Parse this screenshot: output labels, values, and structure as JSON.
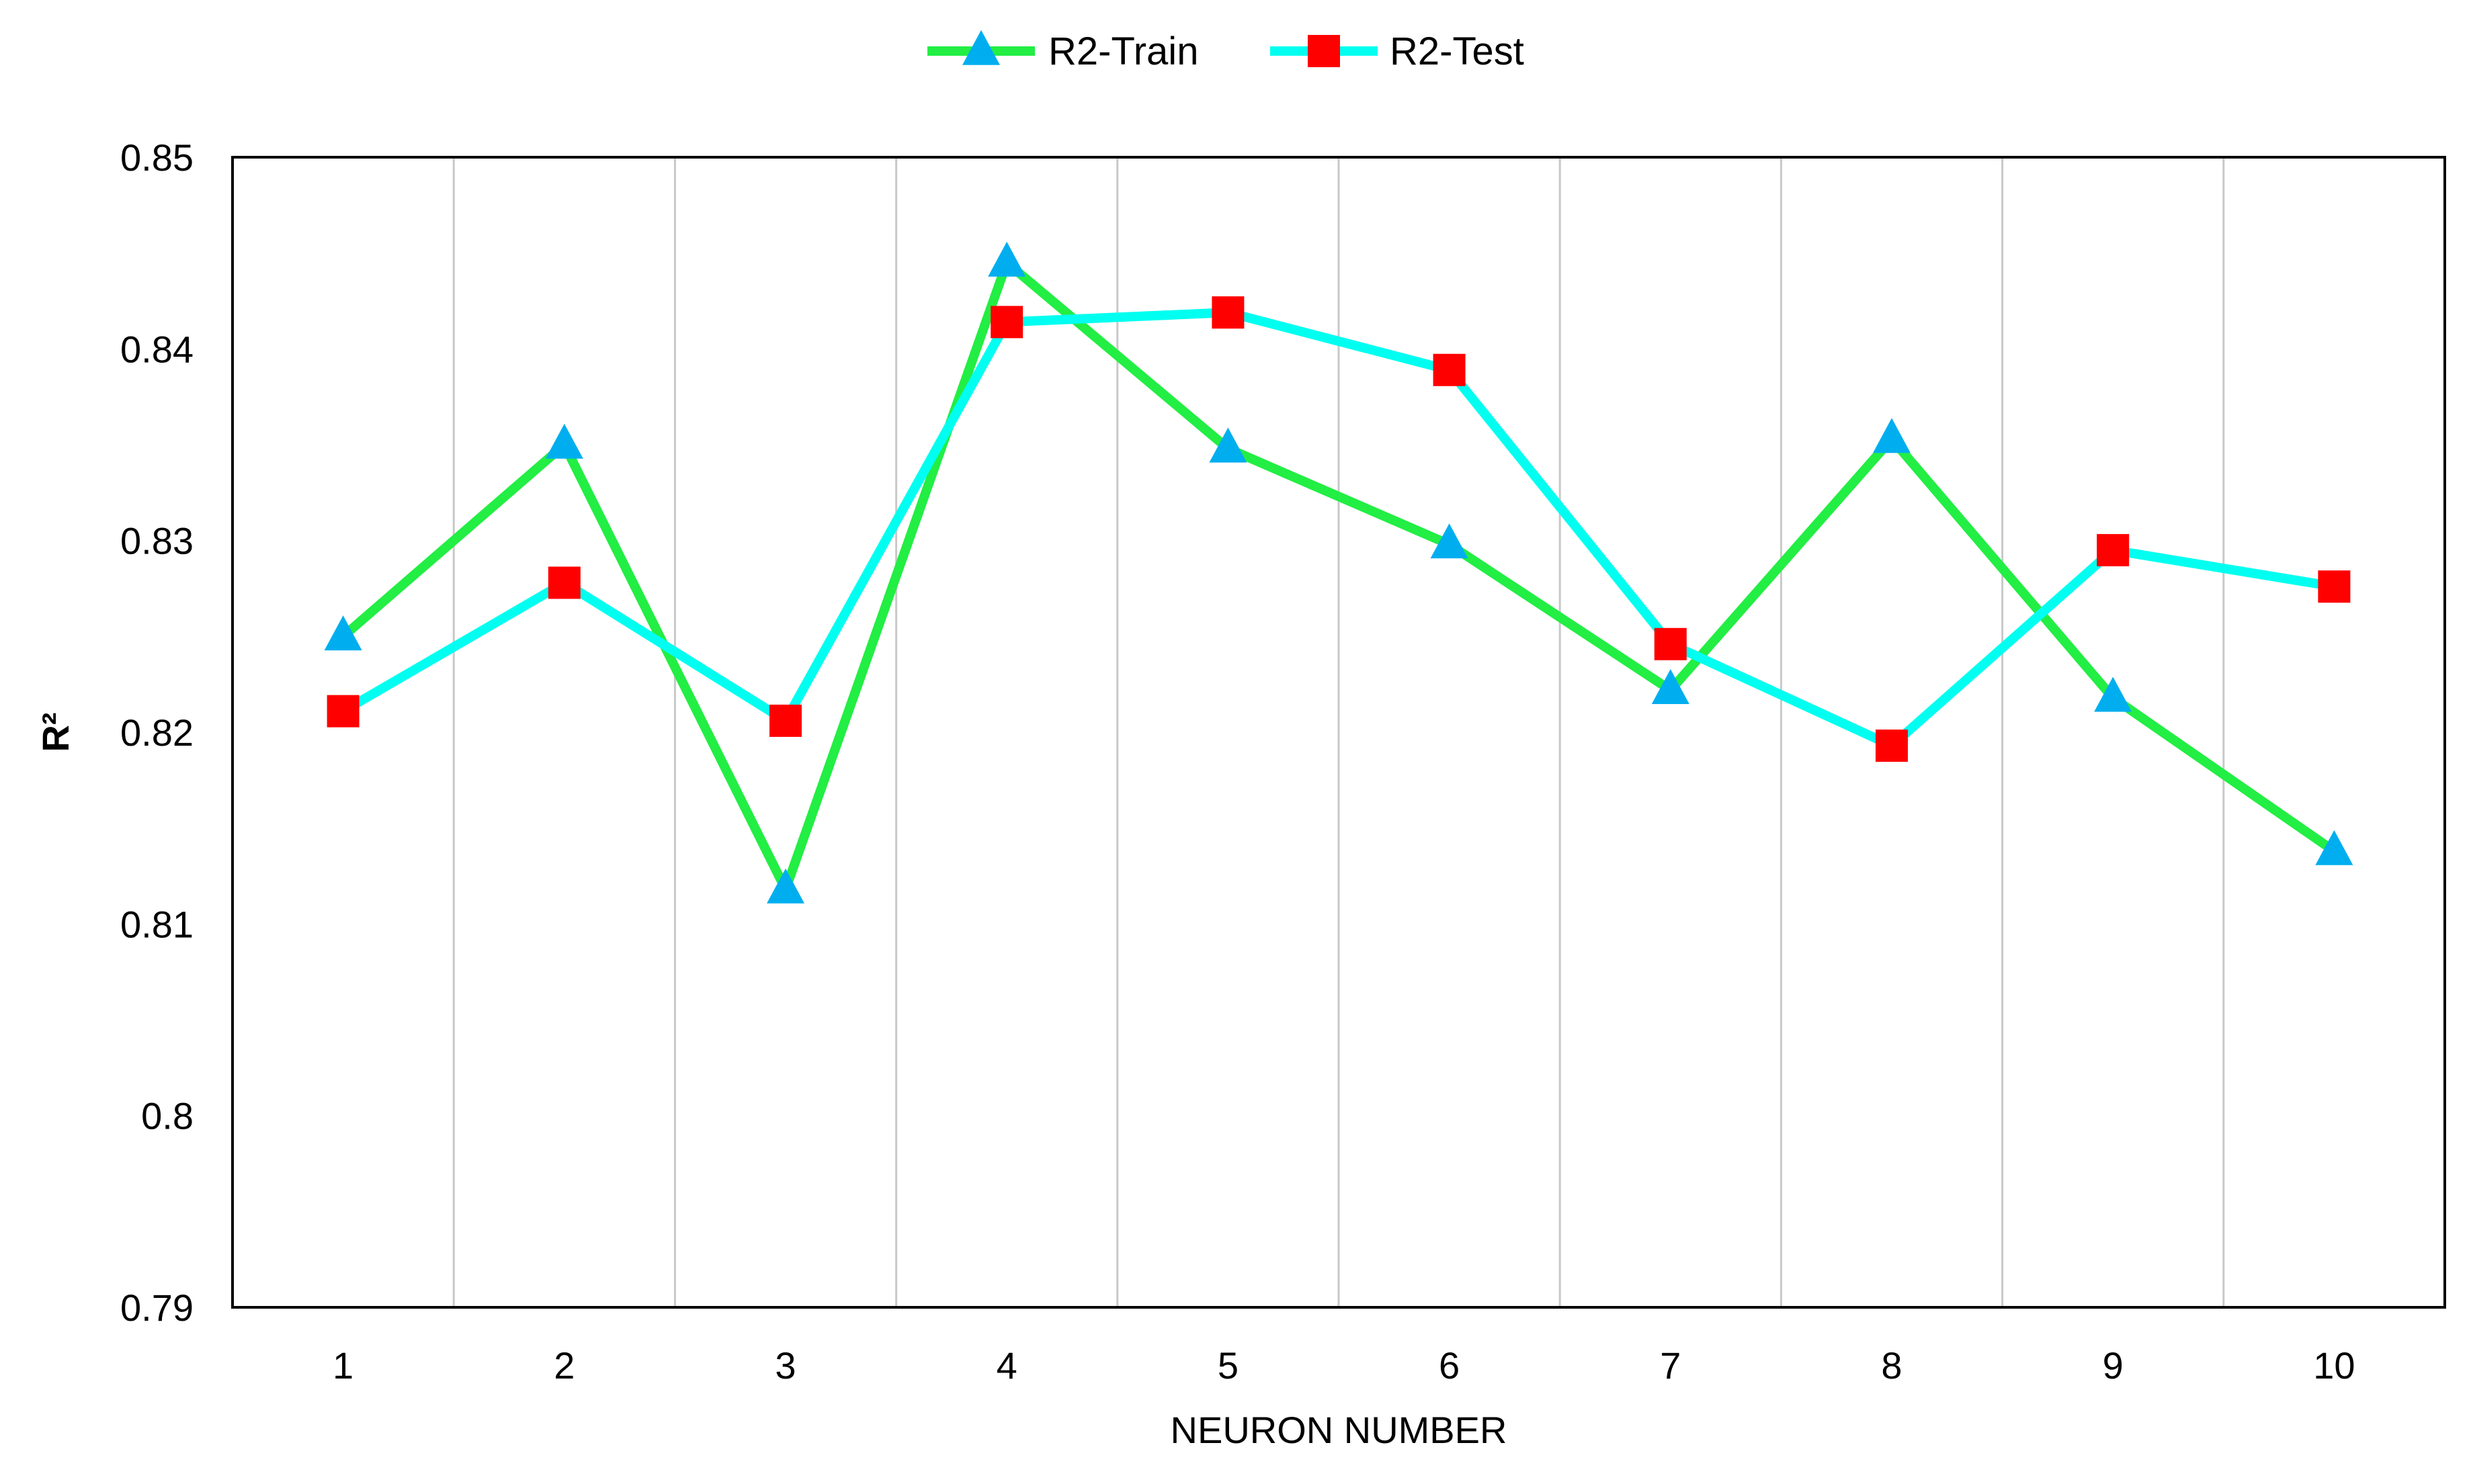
{
  "chart_data": {
    "type": "line",
    "title": "",
    "xlabel": "NEURON NUMBER",
    "ylabel": "R²",
    "categories": [
      "1",
      "2",
      "3",
      "4",
      "5",
      "6",
      "7",
      "8",
      "9",
      "10"
    ],
    "ylim": [
      0.79,
      0.85
    ],
    "yticks": [
      0.79,
      0.8,
      0.81,
      0.82,
      0.83,
      0.84,
      0.85
    ],
    "ytick_labels": [
      "0.79",
      "0.8",
      "0.81",
      "0.82",
      "0.83",
      "0.84",
      "0.85"
    ],
    "grid": "vertical",
    "legend_position": "top-center",
    "series": [
      {
        "name": "R2-Train",
        "line_color": "#22EE44",
        "marker": "triangle",
        "marker_color": "#00AEEF",
        "values": [
          0.825,
          0.835,
          0.8118,
          0.8445,
          0.8348,
          0.8298,
          0.8222,
          0.8353,
          0.8218,
          0.8138
        ]
      },
      {
        "name": "R2-Test",
        "line_color": "#00FFF0",
        "marker": "square",
        "marker_color": "#FF0000",
        "values": [
          0.8211,
          0.8278,
          0.8206,
          0.8414,
          0.8419,
          0.8389,
          0.8246,
          0.8193,
          0.8295,
          0.8276
        ]
      }
    ]
  }
}
